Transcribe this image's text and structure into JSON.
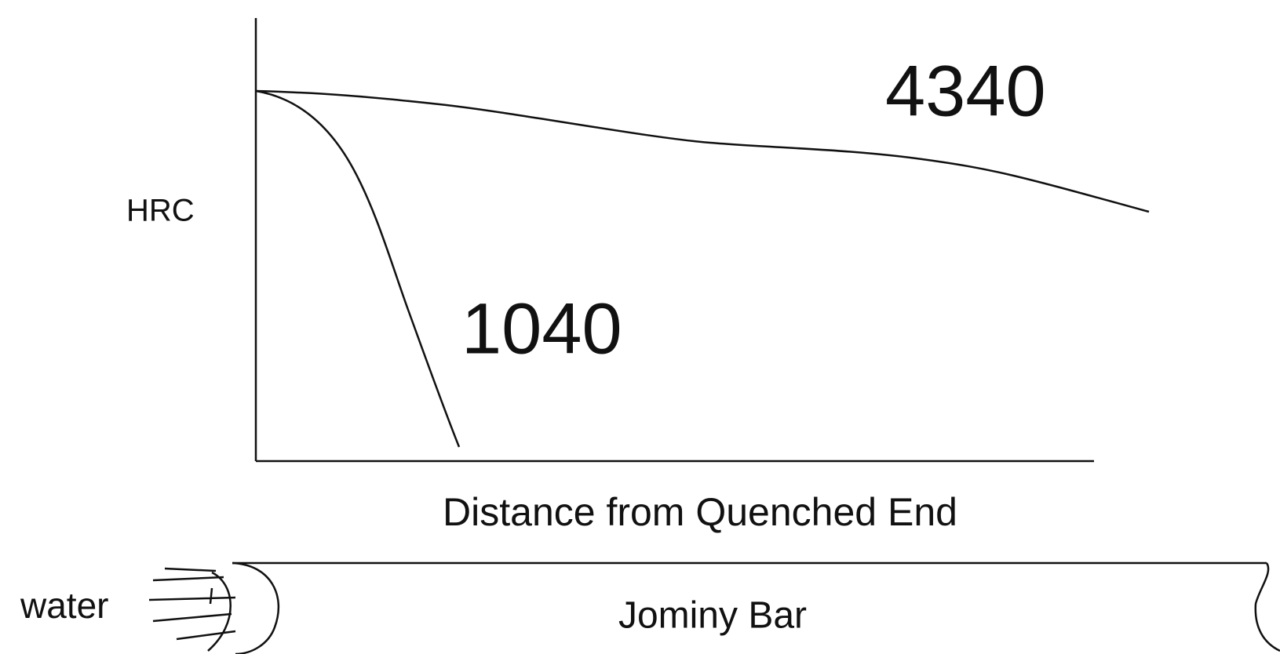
{
  "chart": {
    "y_axis_label": "HRC",
    "x_axis_label": "Distance from Quenched End",
    "curves": [
      {
        "label": "4340"
      },
      {
        "label": "1040"
      }
    ]
  },
  "bar": {
    "water_label": "water",
    "bar_label": "Jominy Bar"
  }
}
